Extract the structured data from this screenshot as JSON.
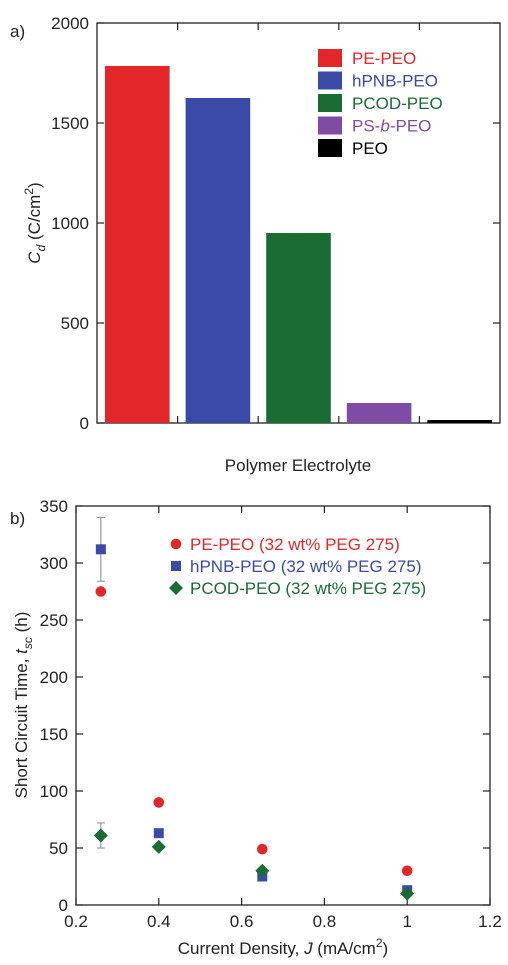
{
  "chart_data": [
    {
      "type": "bar",
      "panel_label": "a)",
      "categories": [
        "PE-PEO",
        "hPNB-PEO",
        "PCOD-PEO",
        "PS-b-PEO",
        "PEO"
      ],
      "values": [
        1785,
        1625,
        950,
        100,
        15
      ],
      "colors": [
        "#e3262a",
        "#3a4aa6",
        "#1b6b35",
        "#7f4ca5",
        "#000000"
      ],
      "xlabel": "Polymer Electrolyte",
      "ylabel_main": "C",
      "ylabel_sub": "d",
      "ylabel_unit": " (C/cm",
      "ylabel_sup": "2",
      "ylabel_close": ")",
      "ylim": [
        0,
        2000
      ],
      "yticks": [
        0,
        500,
        1000,
        1500,
        2000
      ],
      "legend": {
        "placement": "top-right",
        "entries": [
          {
            "label": "PE-PEO",
            "color": "#e3262a"
          },
          {
            "label": "hPNB-PEO",
            "color": "#3a4aa6"
          },
          {
            "label": "PCOD-PEO",
            "color": "#1b6b35"
          },
          {
            "label_pre": "PS-",
            "label_ital": "b",
            "label_post": "-PEO",
            "color": "#7f4ca5"
          },
          {
            "label": "PEO",
            "color": "#000000"
          }
        ]
      }
    },
    {
      "type": "scatter",
      "panel_label": "b)",
      "xlabel_main": "Current Density, ",
      "xlabel_ital": "J",
      "xlabel_unit": " (mA/cm",
      "xlabel_sup": "2",
      "xlabel_close": ")",
      "ylabel_main": "Short Circuit Time, ",
      "ylabel_ital": "t",
      "ylabel_sub": "sc",
      "ylabel_unit": " (h)",
      "xlim": [
        0.2,
        1.2
      ],
      "ylim": [
        0,
        350
      ],
      "xticks": [
        "0.2",
        "0.4",
        "0.6",
        "0.8",
        "1",
        "1.2"
      ],
      "yticks": [
        0,
        50,
        100,
        150,
        200,
        250,
        300,
        350
      ],
      "series": [
        {
          "name": "PE-PEO (32 wt% PEG 275)",
          "color": "#e3262a",
          "marker": "circle",
          "x": [
            0.26,
            0.4,
            0.65,
            1.0
          ],
          "y": [
            275,
            90,
            49,
            30
          ]
        },
        {
          "name": "hPNB-PEO (32 wt% PEG 275)",
          "color": "#3a4aa6",
          "marker": "square",
          "x": [
            0.26,
            0.4,
            0.65,
            1.0
          ],
          "y": [
            312,
            63,
            25,
            13
          ],
          "errors": [
            {
              "x": 0.26,
              "low": 284,
              "high": 340
            }
          ]
        },
        {
          "name": "PCOD-PEO (32 wt% PEG 275)",
          "color": "#1b6b35",
          "marker": "diamond",
          "x": [
            0.26,
            0.4,
            0.65,
            1.0
          ],
          "y": [
            61,
            51,
            30,
            10
          ],
          "errors": [
            {
              "x": 0.26,
              "low": 50,
              "high": 72
            }
          ]
        }
      ],
      "legend": {
        "placement": "top-right"
      }
    }
  ]
}
